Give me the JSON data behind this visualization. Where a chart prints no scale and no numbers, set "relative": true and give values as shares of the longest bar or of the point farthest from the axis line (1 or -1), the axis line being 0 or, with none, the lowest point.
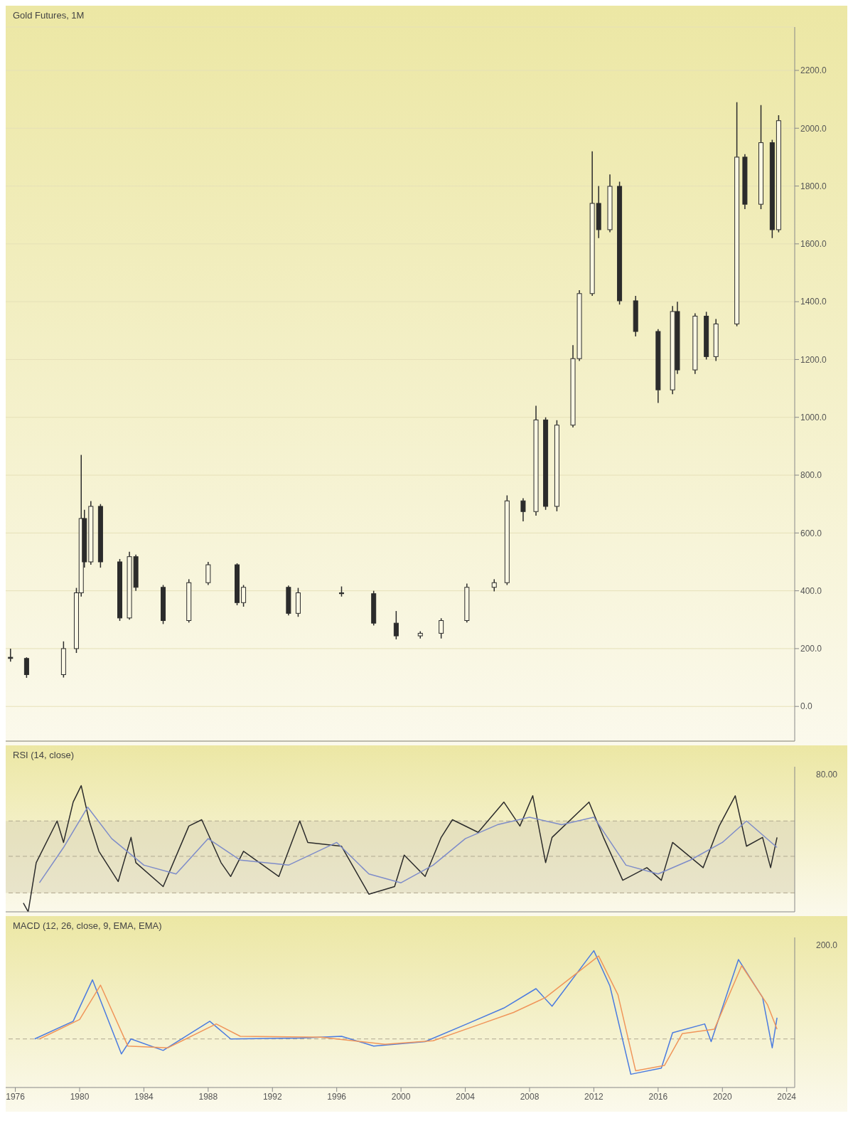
{
  "chart_data": [
    {
      "type": "candlestick",
      "title": "Gold Futures, 1M",
      "color": "#2b2b2b",
      "grid": "y",
      "legend": false,
      "tick_labels": "y",
      "x": [
        1975.7,
        1976.7,
        1979.0,
        1979.8,
        1980.1,
        1980.3,
        1980.7,
        1981.3,
        1982.5,
        1983.1,
        1983.5,
        1985.2,
        1986.8,
        1988.0,
        1989.8,
        1990.2,
        1993.0,
        1993.6,
        1996.3,
        1998.3,
        1999.7,
        2001.2,
        2002.5,
        2004.1,
        2005.8,
        2006.6,
        2007.6,
        2008.4,
        2009.0,
        2009.7,
        2010.7,
        2011.1,
        2011.9,
        2012.3,
        2013.0,
        2013.6,
        2014.6,
        2016.0,
        2016.9,
        2017.2,
        2018.3,
        2019.0,
        2019.6,
        2020.9,
        2021.4,
        2022.4,
        2023.1,
        2023.5
      ],
      "ohlc": [
        [
          170,
          200,
          155,
          166
        ],
        [
          166,
          170,
          99,
          110
        ],
        [
          110,
          225,
          100,
          200
        ],
        [
          200,
          410,
          185,
          393
        ],
        [
          393,
          870,
          380,
          650
        ],
        [
          650,
          680,
          480,
          500
        ],
        [
          500,
          710,
          490,
          692
        ],
        [
          692,
          700,
          480,
          500
        ],
        [
          500,
          510,
          296,
          306
        ],
        [
          306,
          535,
          300,
          518
        ],
        [
          518,
          525,
          400,
          412
        ],
        [
          412,
          420,
          285,
          297
        ],
        [
          297,
          440,
          290,
          428
        ],
        [
          428,
          500,
          420,
          490
        ],
        [
          490,
          495,
          350,
          359
        ],
        [
          359,
          420,
          345,
          412
        ],
        [
          412,
          418,
          315,
          322
        ],
        [
          322,
          410,
          310,
          393
        ],
        [
          393,
          415,
          380,
          390
        ],
        [
          390,
          400,
          280,
          288
        ],
        [
          288,
          330,
          232,
          244
        ],
        [
          244,
          260,
          235,
          253
        ],
        [
          253,
          305,
          235,
          297
        ],
        [
          297,
          425,
          290,
          412
        ],
        [
          412,
          440,
          398,
          428
        ],
        [
          428,
          730,
          420,
          711
        ],
        [
          711,
          720,
          640,
          674
        ],
        [
          674,
          1040,
          660,
          991
        ],
        [
          991,
          1000,
          680,
          692
        ],
        [
          692,
          990,
          675,
          973
        ],
        [
          973,
          1250,
          965,
          1203
        ],
        [
          1203,
          1440,
          1195,
          1428
        ],
        [
          1428,
          1920,
          1420,
          1740
        ],
        [
          1740,
          1800,
          1620,
          1649
        ],
        [
          1649,
          1840,
          1640,
          1799
        ],
        [
          1799,
          1815,
          1390,
          1403
        ],
        [
          1403,
          1420,
          1280,
          1297
        ],
        [
          1297,
          1305,
          1050,
          1095
        ],
        [
          1095,
          1385,
          1080,
          1366
        ],
        [
          1366,
          1400,
          1150,
          1164
        ],
        [
          1164,
          1360,
          1150,
          1350
        ],
        [
          1350,
          1365,
          1200,
          1210
        ],
        [
          1210,
          1340,
          1195,
          1323
        ],
        [
          1323,
          2090,
          1315,
          1900
        ],
        [
          1900,
          1910,
          1720,
          1737
        ],
        [
          1737,
          2080,
          1720,
          1950
        ],
        [
          1950,
          1960,
          1620,
          1649
        ],
        [
          1649,
          2045,
          1640,
          2026
        ]
      ],
      "xlim": [
        1975.4,
        2024.5
      ],
      "xticks": [
        1976,
        1980,
        1984,
        1988,
        1992,
        1996,
        2000,
        2004,
        2008,
        2012,
        2016,
        2020,
        2024
      ],
      "ylim": [
        -120,
        2350
      ],
      "yticks": [
        {
          "value": 0,
          "label": "0.0"
        },
        {
          "value": 200,
          "label": "200.0"
        },
        {
          "value": 400,
          "label": "400.0"
        },
        {
          "value": 600,
          "label": "600.0"
        },
        {
          "value": 800,
          "label": "800.0"
        },
        {
          "value": 1000,
          "label": "1000.0"
        },
        {
          "value": 1200,
          "label": "1200.0"
        },
        {
          "value": 1400,
          "label": "1400.0"
        },
        {
          "value": 1600,
          "label": "1600.0"
        },
        {
          "value": 1800,
          "label": "1800.0"
        },
        {
          "value": 2000,
          "label": "2000.0"
        },
        {
          "value": 2200,
          "label": "2200.0"
        }
      ]
    },
    {
      "type": "line",
      "title": "RSI (14, close)",
      "legend": false,
      "tick_labels": "y",
      "line_style": "solid",
      "relative": true,
      "annotations": [
        "80.00"
      ],
      "series": [
        {
          "color": "#2b2b2b",
          "x": [
            1976.5,
            1976.8,
            1977.3,
            1978.6,
            1979.0,
            1979.6,
            1980.1,
            1980.6,
            1981.2,
            1982.4,
            1983.2,
            1983.5,
            1985.2,
            1986.8,
            1987.6,
            1988.8,
            1989.4,
            1990.2,
            1992.4,
            1993.7,
            1994.2,
            1996.3,
            1998.0,
            1999.6,
            2000.2,
            2001.5,
            2002.5,
            2003.2,
            2004.8,
            2006.4,
            2007.4,
            2008.2,
            2009.0,
            2009.4,
            2011.7,
            2012.6,
            2013.8,
            2015.3,
            2016.2,
            2016.9,
            2018.8,
            2019.8,
            2020.8,
            2021.5,
            2022.5,
            2023.0,
            2023.4
          ],
          "values": [
            0.07,
            0,
            0.39,
            0.72,
            0.55,
            0.87,
            1,
            0.72,
            0.48,
            0.24,
            0.59,
            0.39,
            0.2,
            0.68,
            0.73,
            0.39,
            0.28,
            0.48,
            0.28,
            0.72,
            0.55,
            0.52,
            0.14,
            0.2,
            0.45,
            0.28,
            0.59,
            0.73,
            0.63,
            0.87,
            0.68,
            0.92,
            0.39,
            0.59,
            0.87,
            0.59,
            0.25,
            0.35,
            0.25,
            0.55,
            0.35,
            0.68,
            0.92,
            0.52,
            0.59,
            0.35,
            0.59
          ]
        },
        {
          "color": "#7e8cc9",
          "x": [
            1977.5,
            1979,
            1980.5,
            1982,
            1984,
            1986,
            1988,
            1990,
            1993,
            1996,
            1998,
            2000,
            2002,
            2004,
            2006,
            2008,
            2010,
            2012,
            2014,
            2016,
            2018,
            2020,
            2021.5,
            2023.4
          ],
          "values": [
            0.23,
            0.51,
            0.83,
            0.58,
            0.37,
            0.3,
            0.58,
            0.41,
            0.37,
            0.55,
            0.3,
            0.23,
            0.37,
            0.58,
            0.69,
            0.75,
            0.69,
            0.75,
            0.37,
            0.3,
            0.41,
            0.55,
            0.72,
            0.51
          ]
        }
      ],
      "ref_lines": [
        {
          "axis": "y",
          "value": 0.72,
          "line_style": "dashed",
          "color": "#b0a890"
        },
        {
          "axis": "y",
          "value": 0.44,
          "line_style": "dashed",
          "color": "#b0a890"
        },
        {
          "axis": "y",
          "value": 0.15,
          "line_style": "dashed",
          "color": "#b0a890"
        }
      ],
      "bands": [
        {
          "axis": "y",
          "from": 0.15,
          "to": 0.72,
          "color": "#d8d2b4"
        }
      ],
      "xlim": [
        1975.4,
        2024.5
      ],
      "xticks": [
        1976,
        1980,
        1984,
        1988,
        1992,
        1996,
        2000,
        2004,
        2008,
        2012,
        2016,
        2020,
        2024
      ]
    },
    {
      "type": "line",
      "title": "MACD (12, 26, close, 9, EMA, EMA)",
      "legend": false,
      "line_style": "solid",
      "relative": true,
      "annotations": [
        "200.0"
      ],
      "series": [
        {
          "color": "#4a7be0",
          "x": [
            1977.2,
            1979.6,
            1980.8,
            1982.6,
            1983.2,
            1985.2,
            1988.1,
            1989.4,
            1993.7,
            1996.3,
            1998.3,
            2001.5,
            2004.1,
            2006.4,
            2008.4,
            2009.4,
            2012.0,
            2013.0,
            2014.3,
            2016.2,
            2016.9,
            2018.9,
            2019.3,
            2021.0,
            2022.5,
            2023.1,
            2023.4
          ],
          "values": [
            0,
            0.2,
            0.67,
            -0.17,
            0,
            -0.13,
            0.2,
            0,
            0.01,
            0.03,
            -0.08,
            -0.03,
            0.17,
            0.35,
            0.57,
            0.37,
            1,
            0.6,
            -0.4,
            -0.33,
            0.07,
            0.17,
            -0.03,
            0.9,
            0.47,
            -0.1,
            0.24
          ]
        },
        {
          "color": "#f0955a",
          "x": [
            1977.5,
            1980,
            1981.3,
            1983,
            1985.5,
            1988.5,
            1990,
            1995,
            1999,
            2002,
            2004.5,
            2007,
            2009,
            2012.3,
            2013.5,
            2014.6,
            2016.4,
            2017.5,
            2019.5,
            2021.2,
            2022.8,
            2023.4
          ],
          "values": [
            0,
            0.22,
            0.61,
            -0.08,
            -0.1,
            0.17,
            0.03,
            0.02,
            -0.06,
            -0.02,
            0.14,
            0.3,
            0.47,
            0.94,
            0.5,
            -0.36,
            -0.3,
            0.06,
            0.11,
            0.83,
            0.39,
            0.11
          ]
        }
      ],
      "ref_lines": [
        {
          "axis": "y",
          "value": 0,
          "line_style": "dashed",
          "color": "#b0a890"
        }
      ],
      "xlim": [
        1975.4,
        2024.5
      ],
      "xticks": [
        1976,
        1980,
        1984,
        1988,
        1992,
        1996,
        2000,
        2004,
        2008,
        2012,
        2016,
        2020,
        2024
      ]
    }
  ]
}
